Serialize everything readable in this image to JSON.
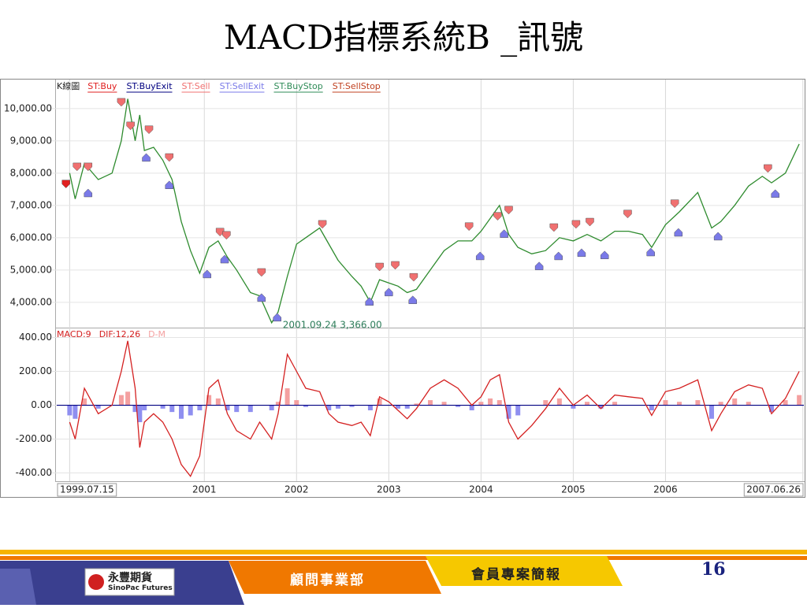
{
  "slide": {
    "title": "MACD指標系統B _訊號",
    "logo_cn": "永豐期貨",
    "logo_en": "SinoPac Futures",
    "dept": "顧問事業部",
    "section": "會員專案簡報",
    "page": "16"
  },
  "chart_data": [
    {
      "type": "line",
      "label": "K線圖",
      "color": "#2e8b2e",
      "x": [
        1999.54,
        1999.6,
        1999.7,
        1999.85,
        2000.0,
        2000.1,
        2000.17,
        2000.25,
        2000.3,
        2000.35,
        2000.45,
        2000.55,
        2000.65,
        2000.75,
        2000.85,
        2000.95,
        2001.05,
        2001.15,
        2001.25,
        2001.35,
        2001.5,
        2001.6,
        2001.73,
        2001.8,
        2001.9,
        2002.0,
        2002.1,
        2002.25,
        2002.35,
        2002.45,
        2002.6,
        2002.7,
        2002.8,
        2002.9,
        2003.0,
        2003.1,
        2003.2,
        2003.3,
        2003.45,
        2003.6,
        2003.75,
        2003.9,
        2004.0,
        2004.1,
        2004.2,
        2004.3,
        2004.4,
        2004.55,
        2004.7,
        2004.85,
        2005.0,
        2005.15,
        2005.3,
        2005.45,
        2005.6,
        2005.75,
        2005.85,
        2006.0,
        2006.15,
        2006.35,
        2006.5,
        2006.6,
        2006.75,
        2006.9,
        2007.05,
        2007.15,
        2007.3,
        2007.45
      ],
      "values": [
        8000,
        7200,
        8300,
        7800,
        8000,
        9000,
        10300,
        9000,
        9800,
        8700,
        8800,
        8400,
        7800,
        6500,
        5600,
        4900,
        5700,
        5900,
        5400,
        5000,
        4300,
        4200,
        3366,
        3700,
        4800,
        5800,
        6000,
        6300,
        5800,
        5300,
        4800,
        4500,
        4000,
        4700,
        4600,
        4500,
        4300,
        4400,
        5000,
        5600,
        5900,
        5900,
        6200,
        6600,
        7000,
        6100,
        5700,
        5500,
        5600,
        6000,
        5900,
        6100,
        5900,
        6200,
        6200,
        6100,
        5700,
        6400,
        6800,
        7400,
        6300,
        6500,
        7000,
        7600,
        7900,
        7700,
        8000,
        8900
      ],
      "xlim": [
        1999.4,
        2007.5
      ],
      "ylim": [
        3240,
        10850
      ],
      "yticks": [
        {
          "value": 4000,
          "label": "4,000.00"
        },
        {
          "value": 5000,
          "label": "5,000.00"
        },
        {
          "value": 6000,
          "label": "6,000.00"
        },
        {
          "value": 7000,
          "label": "7,000.00"
        },
        {
          "value": 8000,
          "label": "8,000.00"
        },
        {
          "value": 9000,
          "label": "9,000.00"
        },
        {
          "value": 10000,
          "label": "10,000.00"
        }
      ],
      "annotation": "2001.09.24  3,366.00",
      "series": [
        {
          "name": "ST:Buy",
          "color": "#e02020",
          "marker": "down",
          "x": [
            1999.5
          ],
          "y": [
            7590
          ]
        },
        {
          "name": "ST:BuyExit",
          "color": "#000080",
          "marker": "up",
          "x": [],
          "y": []
        },
        {
          "name": "ST:Sell",
          "color": "#f07070",
          "marker": "down",
          "x": [
            1999.62,
            1999.74,
            2000.1,
            2000.2,
            2000.4,
            2000.62,
            2001.17,
            2001.24,
            2001.62,
            2002.28,
            2002.9,
            2003.07,
            2003.27,
            2003.87,
            2004.18,
            2004.3,
            2004.79,
            2005.03,
            2005.18,
            2005.59,
            2006.1,
            2007.11
          ],
          "y": [
            8120,
            8120,
            10120,
            9390,
            9270,
            8410,
            6100,
            6000,
            4850,
            6340,
            5020,
            5070,
            4700,
            6270,
            6590,
            6780,
            6240,
            6340,
            6410,
            6660,
            6980,
            8070
          ]
        },
        {
          "name": "ST:SellExit",
          "color": "#7a7ae8",
          "marker": "up",
          "x": [
            1999.74,
            2000.37,
            2000.62,
            2001.03,
            2001.22,
            2001.62,
            2001.79,
            2002.79,
            2003.0,
            2003.26,
            2003.99,
            2004.25,
            2004.63,
            2004.84,
            2005.09,
            2005.34,
            2005.84,
            2006.14,
            2006.57,
            2007.19
          ],
          "y": [
            7460,
            8560,
            7710,
            4950,
            5410,
            4220,
            3610,
            4100,
            4390,
            4150,
            5510,
            6200,
            5200,
            5510,
            5610,
            5540,
            5630,
            6240,
            6120,
            7440
          ]
        },
        {
          "name": "ST:BuyStop",
          "color": "#2e8b57",
          "marker": "up",
          "x": [],
          "y": []
        },
        {
          "name": "ST:SellStop",
          "color": "#c04020",
          "marker": "down",
          "x": [],
          "y": []
        }
      ]
    },
    {
      "type": "macd",
      "label": "MACD:9",
      "x": [
        1999.54,
        1999.6,
        1999.7,
        1999.85,
        2000.0,
        2000.1,
        2000.17,
        2000.25,
        2000.3,
        2000.35,
        2000.45,
        2000.55,
        2000.65,
        2000.75,
        2000.85,
        2000.95,
        2001.05,
        2001.15,
        2001.25,
        2001.35,
        2001.5,
        2001.6,
        2001.73,
        2001.8,
        2001.9,
        2002.0,
        2002.1,
        2002.25,
        2002.35,
        2002.45,
        2002.6,
        2002.7,
        2002.8,
        2002.9,
        2003.0,
        2003.1,
        2003.2,
        2003.3,
        2003.45,
        2003.6,
        2003.75,
        2003.9,
        2004.0,
        2004.1,
        2004.2,
        2004.3,
        2004.4,
        2004.55,
        2004.7,
        2004.85,
        2005.0,
        2005.15,
        2005.3,
        2005.45,
        2005.6,
        2005.75,
        2005.85,
        2006.0,
        2006.15,
        2006.35,
        2006.5,
        2006.6,
        2006.75,
        2006.9,
        2007.05,
        2007.15,
        2007.3,
        2007.45
      ],
      "series": [
        {
          "name": "DIF:12,26",
          "color": "#d42020",
          "values": [
            -100,
            -200,
            100,
            -50,
            0,
            200,
            380,
            100,
            -250,
            -100,
            -50,
            -100,
            -200,
            -350,
            -420,
            -300,
            100,
            150,
            -50,
            -150,
            -200,
            -100,
            -200,
            -50,
            300,
            200,
            100,
            80,
            -50,
            -100,
            -120,
            -100,
            -180,
            50,
            20,
            -30,
            -80,
            -20,
            100,
            150,
            100,
            0,
            50,
            150,
            180,
            -100,
            -200,
            -120,
            -20,
            100,
            0,
            60,
            -20,
            60,
            50,
            40,
            -60,
            80,
            100,
            150,
            -150,
            -50,
            80,
            120,
            100,
            -50,
            40,
            200
          ]
        },
        {
          "name": "D-M",
          "color": "#f4a0a0",
          "negative_color": "#8f8ff0",
          "values": [
            -60,
            -80,
            40,
            -20,
            0,
            60,
            80,
            -40,
            -100,
            -30,
            0,
            -20,
            -40,
            -80,
            -60,
            -30,
            60,
            40,
            -30,
            -40,
            -40,
            0,
            -30,
            20,
            100,
            30,
            -10,
            0,
            -30,
            -20,
            -10,
            0,
            -30,
            40,
            0,
            -20,
            -20,
            10,
            30,
            20,
            -10,
            -30,
            20,
            40,
            30,
            -80,
            -60,
            0,
            30,
            40,
            -20,
            20,
            -20,
            20,
            0,
            0,
            -30,
            30,
            20,
            30,
            -80,
            20,
            40,
            20,
            0,
            -40,
            30,
            60
          ]
        }
      ],
      "xlim": [
        1999.4,
        2007.5
      ],
      "ylim": [
        -444,
        449
      ],
      "yticks": [
        {
          "value": -400,
          "label": "-400.00"
        },
        {
          "value": -200,
          "label": "-200.00"
        },
        {
          "value": 0,
          "label": "0.00"
        },
        {
          "value": 200,
          "label": "200.00"
        },
        {
          "value": 400,
          "label": "400.00"
        }
      ],
      "xticks": [
        {
          "value": 1999.54,
          "label": "1999.07.15"
        },
        2001,
        2002,
        2003,
        2004,
        2005,
        2006,
        {
          "value": 2007.49,
          "label": "2007.06.26"
        }
      ]
    }
  ]
}
